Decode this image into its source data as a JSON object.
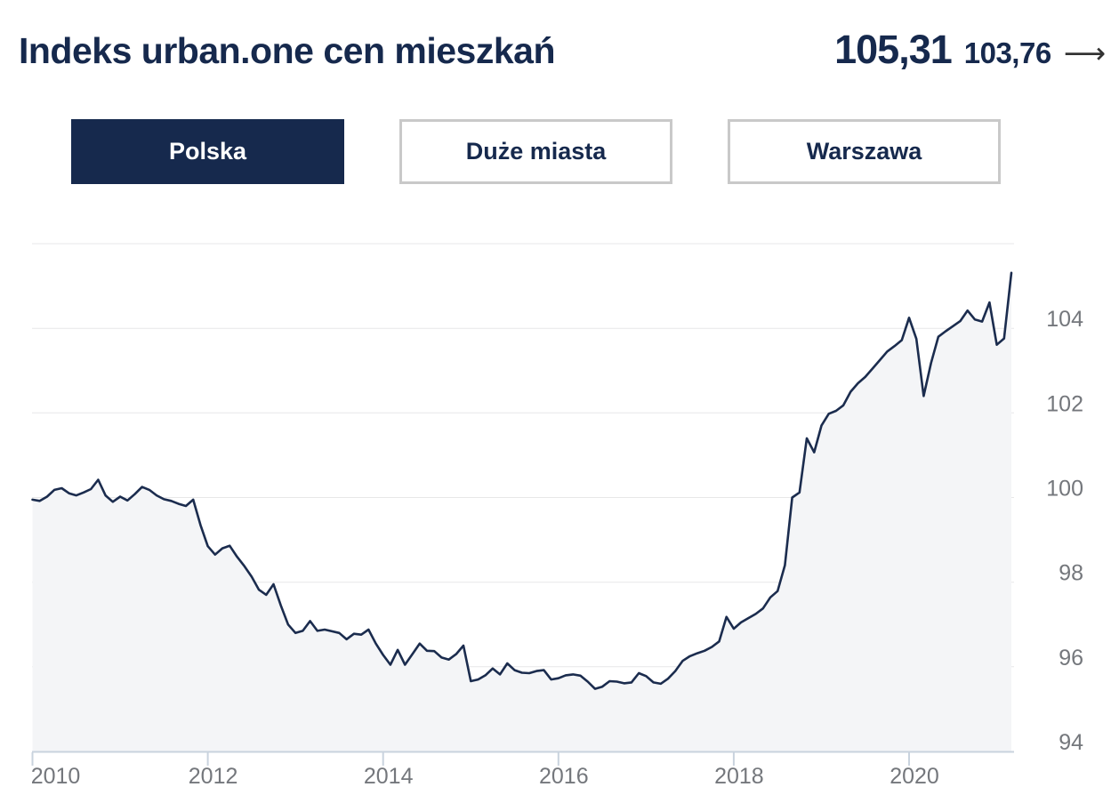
{
  "header": {
    "title": "Indeks urban.one cen mieszkań",
    "value_main": "105,31",
    "value_secondary": "103,76",
    "arrow_icon": "⟶"
  },
  "tabs": [
    {
      "label": "Polska",
      "active": true
    },
    {
      "label": "Duże miasta",
      "active": false
    },
    {
      "label": "Warszawa",
      "active": false
    }
  ],
  "colors": {
    "navy": "#16294d",
    "line": "#1b2c4e",
    "area_fill": "#f4f5f7",
    "gridline": "#e7e7e8",
    "axis_line": "#c9d3de",
    "axis_text": "#74777c",
    "tab_border": "#c9c9c9",
    "arrow": "#333333"
  },
  "chart_data": {
    "type": "area",
    "title": "Indeks urban.one cen mieszkań",
    "series_name": "Polska",
    "x_start": "2010-01",
    "x_end": "2021-03",
    "points_per_year": 12,
    "ylim": [
      94,
      106
    ],
    "grid_step": 2,
    "grid": "horizontal",
    "legend_position": "none",
    "y_axis_side": "right",
    "x_ticks": [
      {
        "year": 2010,
        "label": "2010"
      },
      {
        "year": 2012,
        "label": "2012"
      },
      {
        "year": 2014,
        "label": "2014"
      },
      {
        "year": 2016,
        "label": "2016"
      },
      {
        "year": 2018,
        "label": "2018"
      },
      {
        "year": 2020,
        "label": "2020"
      }
    ],
    "y_ticks": [
      {
        "value": 94,
        "label": "94"
      },
      {
        "value": 96,
        "label": "96"
      },
      {
        "value": 98,
        "label": "98"
      },
      {
        "value": 100,
        "label": "100"
      },
      {
        "value": 102,
        "label": "102"
      },
      {
        "value": 104,
        "label": "104"
      }
    ],
    "values": [
      99.95,
      99.92,
      100.02,
      100.18,
      100.22,
      100.1,
      100.05,
      100.12,
      100.2,
      100.42,
      100.05,
      99.9,
      100.02,
      99.93,
      100.08,
      100.25,
      100.18,
      100.05,
      99.96,
      99.92,
      99.85,
      99.8,
      99.95,
      99.35,
      98.85,
      98.65,
      98.8,
      98.86,
      98.6,
      98.38,
      98.13,
      97.82,
      97.7,
      97.95,
      97.45,
      97.0,
      96.8,
      96.85,
      97.08,
      96.85,
      96.88,
      96.84,
      96.8,
      96.65,
      96.78,
      96.76,
      96.88,
      96.55,
      96.28,
      96.05,
      96.4,
      96.05,
      96.3,
      96.55,
      96.38,
      96.37,
      96.22,
      96.17,
      96.3,
      96.5,
      95.66,
      95.7,
      95.8,
      95.96,
      95.82,
      96.08,
      95.92,
      95.86,
      95.85,
      95.9,
      95.92,
      95.7,
      95.73,
      95.8,
      95.82,
      95.79,
      95.65,
      95.48,
      95.53,
      95.66,
      95.65,
      95.61,
      95.63,
      95.85,
      95.78,
      95.63,
      95.6,
      95.72,
      95.9,
      96.14,
      96.25,
      96.32,
      96.38,
      96.47,
      96.6,
      97.18,
      96.9,
      97.05,
      97.15,
      97.25,
      97.38,
      97.64,
      97.79,
      98.4,
      100.0,
      100.12,
      101.4,
      101.07,
      101.7,
      101.98,
      102.05,
      102.18,
      102.5,
      102.7,
      102.85,
      103.05,
      103.25,
      103.45,
      103.58,
      103.72,
      104.25,
      103.75,
      102.4,
      103.18,
      103.8,
      103.93,
      104.05,
      104.17,
      104.42,
      104.21,
      104.16,
      104.61,
      103.61,
      103.76,
      105.31
    ]
  }
}
